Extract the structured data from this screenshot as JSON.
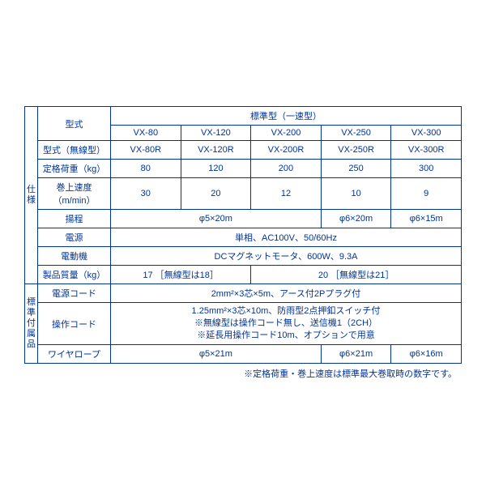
{
  "header": {
    "group_title": "標準型（一速型）"
  },
  "side_labels": {
    "spec": "仕様",
    "acc": "標準付属品"
  },
  "rows": {
    "model": {
      "label": "型式",
      "c": [
        "VX-80",
        "VX-120",
        "VX-200",
        "VX-250",
        "VX-300"
      ]
    },
    "model_r": {
      "label": "型式（無線型）",
      "c": [
        "VX-80R",
        "VX-120R",
        "VX-200R",
        "VX-250R",
        "VX-300R"
      ]
    },
    "capacity": {
      "label": "定格荷重（kg）",
      "c": [
        "80",
        "120",
        "200",
        "250",
        "300"
      ]
    },
    "speed": {
      "label": "巻上速度（m/min）",
      "c": [
        "30",
        "20",
        "12",
        "10",
        "9"
      ]
    },
    "lift": {
      "label": "揚程",
      "c12": "φ5×20m",
      "c4": "φ6×20m",
      "c5": "φ6×15m"
    },
    "power": {
      "label": "電源",
      "all": "単相、AC100V、50/60Hz"
    },
    "motor": {
      "label": "電動機",
      "all": "DCマグネットモータ、600W、9.3A"
    },
    "weight": {
      "label": "製品質量（kg）",
      "a": "17 ［無線型は18］",
      "b": "20 ［無線型は21］"
    },
    "cord_pwr": {
      "label": "電源コード",
      "all": "2mm²×3芯×5m、アース付2Pプラグ付"
    },
    "cord_op": {
      "label": "操作コード",
      "line1": "1.25mm²×3芯×10m、防雨型2点押釦スイッチ付",
      "line2": "※無線型は操作コード無し、送信機1（2CH）",
      "line3": "※延長用操作コード10m、オプションで用意"
    },
    "wire": {
      "label": "ワイヤロープ",
      "c12": "φ5×21m",
      "c4": "φ6×21m",
      "c5": "φ6×16m"
    }
  },
  "footnote": "※定格荷重・巻上速度は標準最大巻取時の数字です。"
}
